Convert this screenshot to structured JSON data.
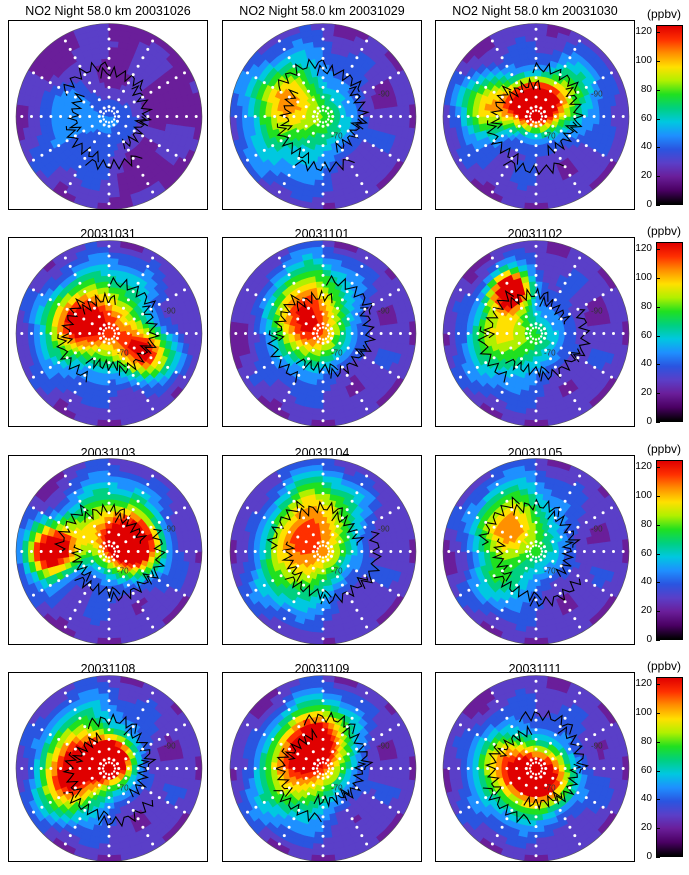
{
  "chart_data": [
    {
      "type": "heatmap",
      "title": "NO2 Night  58.0 km 20031026",
      "z_level": 0.25,
      "blobs": [
        {
          "ang": 200,
          "r": 0.4,
          "amp": 0.2,
          "sig": 0.35
        }
      ],
      "contour_labels": []
    },
    {
      "type": "heatmap",
      "title": "NO2 Night  58.0 km 20031029",
      "z_level": 0.7,
      "blobs": [
        {
          "ang": 190,
          "r": 0.35,
          "amp": 0.35,
          "sig": 0.4
        },
        {
          "ang": 140,
          "r": 0.5,
          "amp": 0.25,
          "sig": 0.3
        }
      ],
      "contour_labels": [
        "-90",
        "-70"
      ]
    },
    {
      "type": "heatmap",
      "title": "NO2 Night  58.0 km 20031030",
      "z_level": 0.85,
      "blobs": [
        {
          "ang": 100,
          "r": 0.15,
          "amp": 0.95,
          "sig": 0.18
        },
        {
          "ang": 170,
          "r": 0.55,
          "amp": 0.45,
          "sig": 0.25
        },
        {
          "ang": 30,
          "r": 0.45,
          "amp": 0.35,
          "sig": 0.25
        }
      ],
      "contour_labels": [
        "-90",
        "-70"
      ]
    },
    {
      "type": "heatmap",
      "title": "20031031",
      "z_level": 0.85,
      "blobs": [
        {
          "ang": 170,
          "r": 0.35,
          "amp": 0.55,
          "sig": 0.3
        },
        {
          "ang": 330,
          "r": 0.45,
          "amp": 0.65,
          "sig": 0.2
        },
        {
          "ang": 90,
          "r": 0.3,
          "amp": 0.35,
          "sig": 0.3
        }
      ],
      "contour_labels": [
        "-90",
        "-70"
      ]
    },
    {
      "type": "heatmap",
      "title": "20031101",
      "z_level": 0.85,
      "blobs": [
        {
          "ang": 110,
          "r": 0.4,
          "amp": 0.55,
          "sig": 0.28
        },
        {
          "ang": 200,
          "r": 0.2,
          "amp": 0.4,
          "sig": 0.25
        }
      ],
      "contour_labels": [
        "-90",
        "-70"
      ]
    },
    {
      "type": "heatmap",
      "title": "20031102",
      "z_level": 0.85,
      "blobs": [
        {
          "ang": 120,
          "r": 0.55,
          "amp": 0.9,
          "sig": 0.15
        },
        {
          "ang": 190,
          "r": 0.35,
          "amp": 0.45,
          "sig": 0.3
        }
      ],
      "contour_labels": [
        "-90",
        "-70"
      ]
    },
    {
      "type": "heatmap",
      "title": "20031103",
      "z_level": 0.85,
      "blobs": [
        {
          "ang": 180,
          "r": 0.65,
          "amp": 0.85,
          "sig": 0.2
        },
        {
          "ang": 10,
          "r": 0.3,
          "amp": 0.8,
          "sig": 0.2
        },
        {
          "ang": 90,
          "r": 0.3,
          "amp": 0.5,
          "sig": 0.3
        }
      ],
      "contour_labels": [
        "-90",
        "-70"
      ]
    },
    {
      "type": "heatmap",
      "title": "20031104",
      "z_level": 0.85,
      "blobs": [
        {
          "ang": 100,
          "r": 0.4,
          "amp": 0.55,
          "sig": 0.3
        },
        {
          "ang": 210,
          "r": 0.35,
          "amp": 0.45,
          "sig": 0.3
        }
      ],
      "contour_labels": [
        "-90",
        "-70"
      ]
    },
    {
      "type": "heatmap",
      "title": "20031105",
      "z_level": 0.85,
      "blobs": [
        {
          "ang": 130,
          "r": 0.4,
          "amp": 0.55,
          "sig": 0.3
        },
        {
          "ang": 220,
          "r": 0.5,
          "amp": 0.3,
          "sig": 0.2
        }
      ],
      "contour_labels": [
        "-90",
        "-70"
      ]
    },
    {
      "type": "heatmap",
      "title": "20031108",
      "z_level": 0.85,
      "blobs": [
        {
          "ang": 80,
          "r": 0.1,
          "amp": 0.9,
          "sig": 0.15
        },
        {
          "ang": 200,
          "r": 0.45,
          "amp": 0.65,
          "sig": 0.25
        },
        {
          "ang": 130,
          "r": 0.4,
          "amp": 0.4,
          "sig": 0.3
        }
      ],
      "contour_labels": [
        "-90",
        "-70"
      ]
    },
    {
      "type": "heatmap",
      "title": "20031109",
      "z_level": 0.85,
      "blobs": [
        {
          "ang": 100,
          "r": 0.35,
          "amp": 0.75,
          "sig": 0.25
        },
        {
          "ang": 200,
          "r": 0.35,
          "amp": 0.5,
          "sig": 0.3
        }
      ],
      "contour_labels": [
        "-90",
        "-70"
      ]
    },
    {
      "type": "heatmap",
      "title": "20031111",
      "z_level": 0.85,
      "blobs": [
        {
          "ang": 290,
          "r": 0.15,
          "amp": 0.6,
          "sig": 0.25
        },
        {
          "ang": 180,
          "r": 0.3,
          "amp": 0.45,
          "sig": 0.3
        }
      ],
      "contour_labels": [
        "-90",
        "-70"
      ]
    }
  ],
  "colorbar": {
    "unit": "(ppbv)",
    "ticks": [
      "0",
      "20",
      "40",
      "60",
      "80",
      "100",
      "120"
    ],
    "range": [
      0,
      125
    ],
    "colors": [
      "#000000",
      "#4a0063",
      "#6a1e9a",
      "#5a3fc8",
      "#2a55e0",
      "#1e90ff",
      "#00c8e0",
      "#00d080",
      "#20e020",
      "#b0f000",
      "#ffe000",
      "#ff9000",
      "#ff3000",
      "#e00000"
    ]
  }
}
